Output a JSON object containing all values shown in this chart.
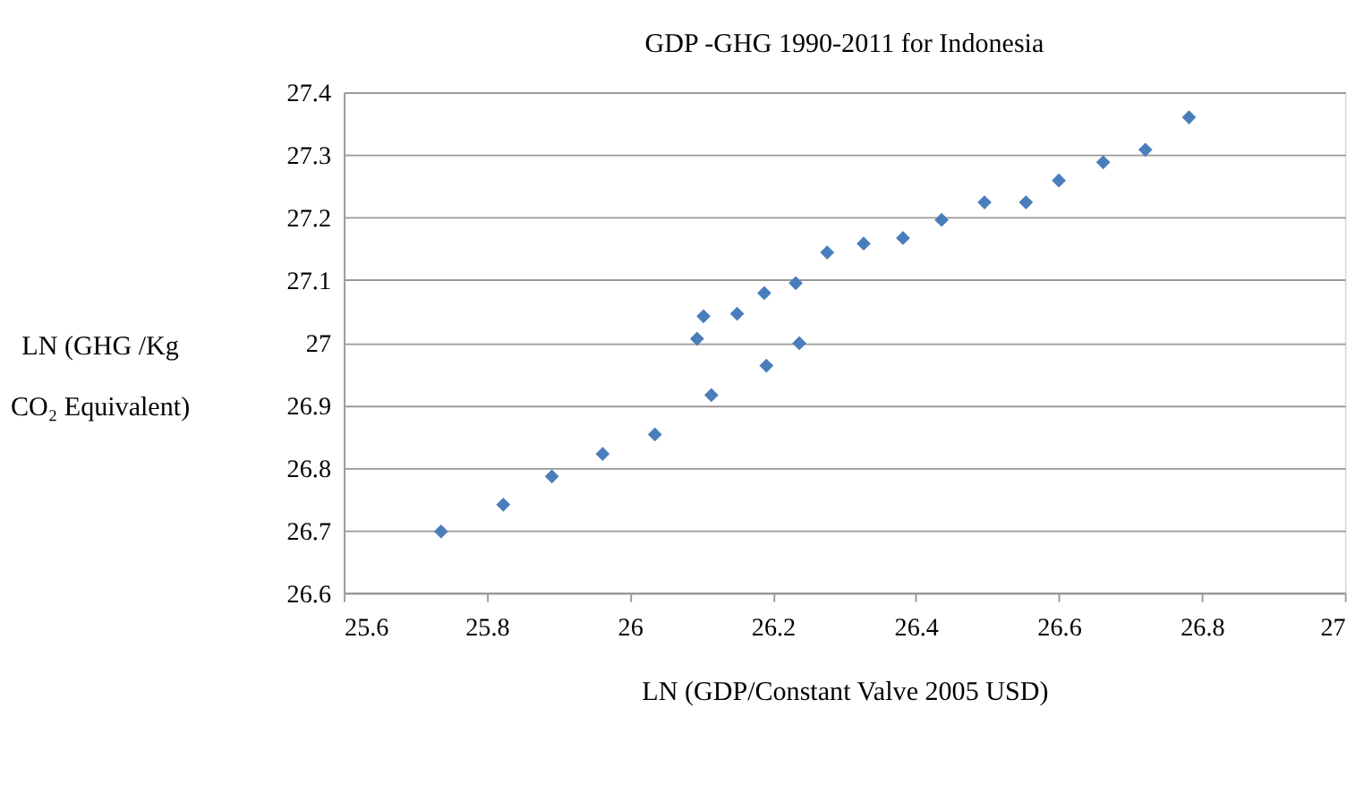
{
  "chart_data": {
    "type": "scatter",
    "title": "GDP -GHG 1990-2011 for Indonesia",
    "xlabel": "LN (GDP/Constant Valve 2005 USD)",
    "ylabel": "LN (GHG /Kg CO₂ Equivalent)",
    "x": [
      25.736,
      25.823,
      25.891,
      25.962,
      26.035,
      26.094,
      26.103,
      26.114,
      26.15,
      26.188,
      26.191,
      26.232,
      26.237,
      26.276,
      26.327,
      26.382,
      26.436,
      26.496,
      26.554,
      26.6,
      26.662,
      26.721,
      26.782
    ],
    "series": [
      {
        "color": "#4a7ebb",
        "values": [
          26.698,
          26.741,
          26.786,
          26.822,
          26.853,
          27.006,
          27.042,
          26.916,
          27.046,
          27.079,
          26.963,
          27.095,
          26.999,
          27.144,
          27.158,
          27.167,
          27.196,
          27.224,
          27.224,
          27.259,
          27.288,
          27.308,
          27.36
        ]
      }
    ],
    "xlim": [
      25.6,
      27
    ],
    "xticks": [
      25.6,
      25.8,
      26,
      26.2,
      26.4,
      26.6,
      26.8,
      27
    ],
    "ylim": [
      26.6,
      27.4
    ],
    "yticks": [
      26.6,
      26.7,
      26.8,
      26.9,
      27,
      27.1,
      27.2,
      27.3,
      27.4
    ],
    "grid": "y",
    "marker": "diamond",
    "legend": false
  }
}
